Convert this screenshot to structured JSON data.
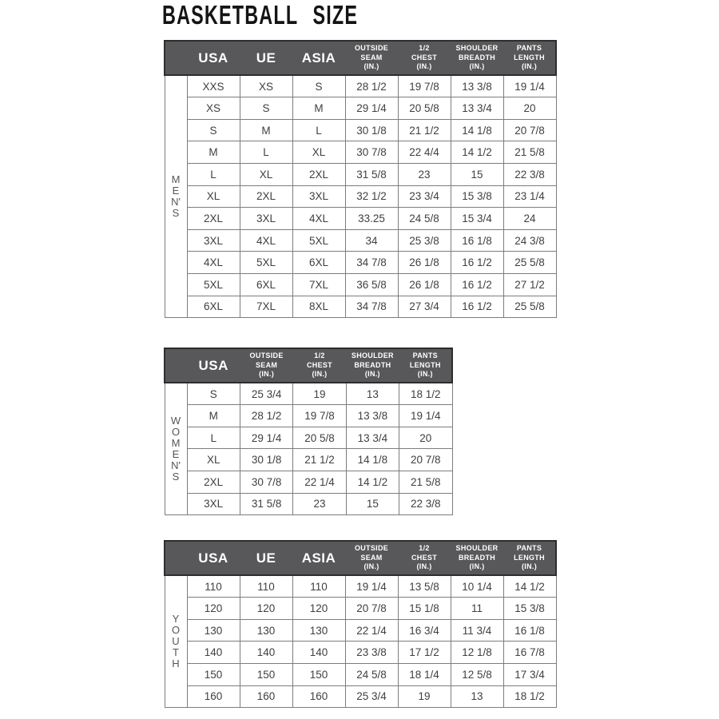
{
  "page": {
    "title": "BASKETBALL SIZE"
  },
  "colors": {
    "page_bg": "#ffffff",
    "header_bg": "#58585a",
    "header_border": "#2d2d2f",
    "header_text": "#ffffff",
    "cell_border": "#7d7d7d",
    "body_text": "#404040",
    "group_label_text": "#56565a",
    "title_text": "#141414"
  },
  "tables": [
    {
      "id": "mens",
      "group_label": "MEN'S",
      "group_letters": [
        "M",
        "E",
        "N'",
        "S"
      ],
      "columns": [
        {
          "label": "USA",
          "style": "big"
        },
        {
          "label": "UE",
          "style": "big"
        },
        {
          "label": "ASIA",
          "style": "big"
        },
        {
          "label": "OUTSIDE SEAM (IN.)",
          "lines": [
            "OUTSIDE",
            "SEAM",
            "(IN.)"
          ],
          "style": "small"
        },
        {
          "label": "1/2 CHEST (IN.)",
          "lines": [
            "1/2",
            "CHEST",
            "(IN.)"
          ],
          "style": "small"
        },
        {
          "label": "SHOULDER BREADTH (IN.)",
          "lines": [
            "SHOULDER",
            "BREADTH",
            "(IN.)"
          ],
          "style": "small"
        },
        {
          "label": "PANTS LENGTH (IN.)",
          "lines": [
            "PANTS",
            "LENGTH",
            "(IN.)"
          ],
          "style": "small"
        }
      ],
      "rows": [
        [
          "XXS",
          "XS",
          "S",
          "28 1/2",
          "19 7/8",
          "13 3/8",
          "19 1/4"
        ],
        [
          "XS",
          "S",
          "M",
          "29 1/4",
          "20 5/8",
          "13 3/4",
          "20"
        ],
        [
          "S",
          "M",
          "L",
          "30 1/8",
          "21 1/2",
          "14 1/8",
          "20 7/8"
        ],
        [
          "M",
          "L",
          "XL",
          "30 7/8",
          "22 4/4",
          "14 1/2",
          "21 5/8"
        ],
        [
          "L",
          "XL",
          "2XL",
          "31 5/8",
          "23",
          "15",
          "22 3/8"
        ],
        [
          "XL",
          "2XL",
          "3XL",
          "32 1/2",
          "23 3/4",
          "15 3/8",
          "23 1/4"
        ],
        [
          "2XL",
          "3XL",
          "4XL",
          "33.25",
          "24 5/8",
          "15 3/4",
          "24"
        ],
        [
          "3XL",
          "4XL",
          "5XL",
          "34",
          "25 3/8",
          "16 1/8",
          "24 3/8"
        ],
        [
          "4XL",
          "5XL",
          "6XL",
          "34 7/8",
          "26 1/8",
          "16 1/2",
          "25 5/8"
        ],
        [
          "5XL",
          "6XL",
          "7XL",
          "36 5/8",
          "26 1/8",
          "16 1/2",
          "27 1/2"
        ],
        [
          "6XL",
          "7XL",
          "8XL",
          "34 7/8",
          "27 3/4",
          "16 1/2",
          "25 5/8"
        ]
      ]
    },
    {
      "id": "womens",
      "group_label": "WOMEN'S",
      "group_letters": [
        "W",
        "O",
        "M",
        "E",
        "N'",
        "S"
      ],
      "columns": [
        {
          "label": "USA",
          "style": "big"
        },
        {
          "label": "OUTSIDE SEAM (IN.)",
          "lines": [
            "OUTSIDE",
            "SEAM",
            "(IN.)"
          ],
          "style": "small"
        },
        {
          "label": "1/2 CHEST (IN.)",
          "lines": [
            "1/2",
            "CHEST",
            "(IN.)"
          ],
          "style": "small"
        },
        {
          "label": "SHOULDER BREADTH (IN.)",
          "lines": [
            "SHOULDER",
            "BREADTH",
            "(IN.)"
          ],
          "style": "small"
        },
        {
          "label": "PANTS LENGTH (IN.)",
          "lines": [
            "PANTS",
            "LENGTH",
            "(IN.)"
          ],
          "style": "small"
        }
      ],
      "rows": [
        [
          "S",
          "25 3/4",
          "19",
          "13",
          "18 1/2"
        ],
        [
          "M",
          "28 1/2",
          "19 7/8",
          "13 3/8",
          "19 1/4"
        ],
        [
          "L",
          "29 1/4",
          "20 5/8",
          "13 3/4",
          "20"
        ],
        [
          "XL",
          "30 1/8",
          "21 1/2",
          "14 1/8",
          "20 7/8"
        ],
        [
          "2XL",
          "30 7/8",
          "22 1/4",
          "14 1/2",
          "21 5/8"
        ],
        [
          "3XL",
          "31 5/8",
          "23",
          "15",
          "22 3/8"
        ]
      ]
    },
    {
      "id": "youth",
      "group_label": "YOUTH",
      "group_letters": [
        "Y",
        "O",
        "U",
        "T",
        "H"
      ],
      "columns": [
        {
          "label": "USA",
          "style": "big"
        },
        {
          "label": "UE",
          "style": "big"
        },
        {
          "label": "ASIA",
          "style": "big"
        },
        {
          "label": "OUTSIDE SEAM (IN.)",
          "lines": [
            "OUTSIDE",
            "SEAM",
            "(IN.)"
          ],
          "style": "small"
        },
        {
          "label": "1/2 CHEST (IN.)",
          "lines": [
            "1/2",
            "CHEST",
            "(IN.)"
          ],
          "style": "small"
        },
        {
          "label": "SHOULDER BREADTH (IN.)",
          "lines": [
            "SHOULDER",
            "BREADTH",
            "(IN.)"
          ],
          "style": "small"
        },
        {
          "label": "PANTS LENGTH (IN.)",
          "lines": [
            "PANTS",
            "LENGTH",
            "(IN.)"
          ],
          "style": "small"
        }
      ],
      "rows": [
        [
          "110",
          "110",
          "110",
          "19 1/4",
          "13 5/8",
          "10 1/4",
          "14 1/2"
        ],
        [
          "120",
          "120",
          "120",
          "20 7/8",
          "15 1/8",
          "11",
          "15 3/8"
        ],
        [
          "130",
          "130",
          "130",
          "22 1/4",
          "16 3/4",
          "11 3/4",
          "16 1/8"
        ],
        [
          "140",
          "140",
          "140",
          "23 3/8",
          "17 1/2",
          "12 1/8",
          "16 7/8"
        ],
        [
          "150",
          "150",
          "150",
          "24 5/8",
          "18 1/4",
          "12 5/8",
          "17 3/4"
        ],
        [
          "160",
          "160",
          "160",
          "25 3/4",
          "19",
          "13",
          "18 1/2"
        ]
      ]
    }
  ]
}
